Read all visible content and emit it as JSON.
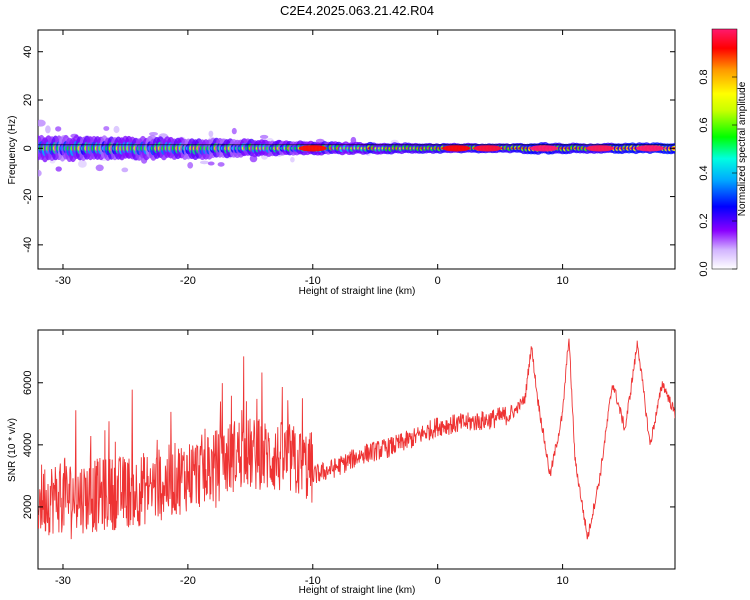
{
  "chart_data": [
    {
      "type": "heatmap",
      "title": "C2E4.2025.063.21.42.R04",
      "xlabel": "Height of straight line (km)",
      "ylabel": "Frequency (Hz)",
      "xlim": [
        -32,
        19
      ],
      "ylim": [
        -50,
        49
      ],
      "xticks": [
        "-30",
        "-20",
        "-10",
        "0",
        "10"
      ],
      "yticks": [
        "40",
        "20",
        "0",
        "-20",
        "-40"
      ],
      "colorbar": {
        "label": "Normalized spectral amplitude",
        "range": [
          0.0,
          1.0
        ],
        "ticks": [
          "0.0",
          "0.2",
          "0.4",
          "0.6",
          "0.8"
        ],
        "colors": [
          "#ffffff",
          "#c8a8ff",
          "#7a00ff",
          "#0000ff",
          "#00d0ff",
          "#00ff00",
          "#ffff00",
          "#ff9900",
          "#ff0000",
          "#ff1a6e"
        ]
      },
      "ridge": {
        "frequency_hz": 0,
        "profile": [
          {
            "x": -32,
            "amp": 0.55,
            "spread_hz": 3.5
          },
          {
            "x": -25,
            "amp": 0.6,
            "spread_hz": 3.2
          },
          {
            "x": -18,
            "amp": 0.58,
            "spread_hz": 2.8
          },
          {
            "x": -12,
            "amp": 0.65,
            "spread_hz": 2.0
          },
          {
            "x": -6,
            "amp": 0.72,
            "spread_hz": 1.6
          },
          {
            "x": 0,
            "amp": 0.82,
            "spread_hz": 1.4
          },
          {
            "x": 6,
            "amp": 0.85,
            "spread_hz": 1.3
          },
          {
            "x": 8,
            "amp": 0.95,
            "spread_hz": 1.6
          },
          {
            "x": 12,
            "amp": 0.82,
            "spread_hz": 1.4
          },
          {
            "x": 16,
            "amp": 0.95,
            "spread_hz": 1.5
          },
          {
            "x": 19,
            "amp": 0.95,
            "spread_hz": 1.5
          }
        ],
        "hotspots": [
          {
            "x": -10,
            "amp": 0.88
          },
          {
            "x": 1.5,
            "amp": 0.9
          },
          {
            "x": 4,
            "amp": 0.95
          },
          {
            "x": 8.5,
            "amp": 1.0
          },
          {
            "x": 13,
            "amp": 0.98
          },
          {
            "x": 17,
            "amp": 1.0
          }
        ]
      }
    },
    {
      "type": "line",
      "xlabel": "Height of straight line (km)",
      "ylabel": "SNR (10 * v/v)",
      "xlim": [
        -32,
        19
      ],
      "ylim": [
        0,
        7700
      ],
      "xticks": [
        "-30",
        "-20",
        "-10",
        "0",
        "10"
      ],
      "yticks": [
        "6000",
        "4000",
        "2000"
      ],
      "color": "#ee3333",
      "series": [
        {
          "x": [
            -32,
            -30,
            -28,
            -26,
            -24,
            -22,
            -20,
            -18,
            -16,
            -14,
            -12,
            -10,
            -8,
            -6,
            -4,
            -2,
            0,
            2,
            4,
            6,
            7,
            7.5,
            8,
            9,
            10,
            10.5,
            11,
            12,
            13,
            14,
            15,
            16,
            17,
            18,
            19
          ],
          "y": [
            2000,
            2100,
            2100,
            2200,
            2300,
            2500,
            2800,
            3000,
            3500,
            3400,
            3300,
            3000,
            3300,
            3700,
            3900,
            4200,
            4600,
            4700,
            4800,
            5000,
            5500,
            7200,
            5500,
            3000,
            5000,
            7500,
            3500,
            1000,
            3000,
            6000,
            4500,
            7300,
            4000,
            6000,
            5000
          ]
        }
      ]
    }
  ]
}
